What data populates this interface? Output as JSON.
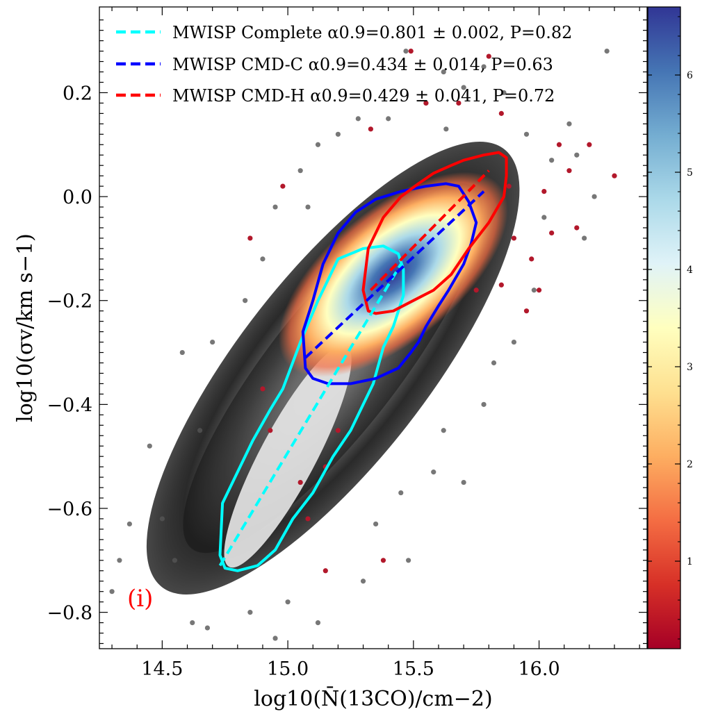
{
  "chart_data": {
    "type": "scatter",
    "title": "",
    "xlabel": "log10(N̄(13CO)/cm−2)",
    "ylabel": "log10(σv/km s−1)",
    "xlim": [
      14.25,
      16.43
    ],
    "ylim": [
      -0.87,
      0.365
    ],
    "x_ticks": [
      {
        "value": 14.5,
        "label": "14.5"
      },
      {
        "value": 15.0,
        "label": "15.0"
      },
      {
        "value": 15.5,
        "label": "15.5"
      },
      {
        "value": 16.0,
        "label": "16.0"
      }
    ],
    "y_ticks": [
      {
        "value": 0.2,
        "label": "0.2"
      },
      {
        "value": 0.0,
        "label": "0.0"
      },
      {
        "value": -0.2,
        "label": "−0.2"
      },
      {
        "value": -0.4,
        "label": "−0.4"
      },
      {
        "value": -0.6,
        "label": "−0.6"
      },
      {
        "value": -0.8,
        "label": "−0.8"
      }
    ],
    "panel_label": "(i)",
    "legend_position": "top-left",
    "series": [
      {
        "name": "MWISP Complete",
        "legend_label": "MWISP Complete α0.9=0.801 ± 0.002, P=0.82",
        "color": "#00ffff",
        "fit_line": [
          [
            14.73,
            -0.71
          ],
          [
            15.45,
            -0.13
          ]
        ],
        "contour": [
          [
            14.73,
            -0.69
          ],
          [
            14.74,
            -0.59
          ],
          [
            14.8,
            -0.53
          ],
          [
            14.86,
            -0.47
          ],
          [
            14.93,
            -0.41
          ],
          [
            14.98,
            -0.37
          ],
          [
            15.05,
            -0.28
          ],
          [
            15.12,
            -0.2
          ],
          [
            15.2,
            -0.12
          ],
          [
            15.3,
            -0.1
          ],
          [
            15.38,
            -0.095
          ],
          [
            15.44,
            -0.11
          ],
          [
            15.46,
            -0.14
          ],
          [
            15.46,
            -0.19
          ],
          [
            15.42,
            -0.25
          ],
          [
            15.38,
            -0.29
          ],
          [
            15.34,
            -0.36
          ],
          [
            15.3,
            -0.4
          ],
          [
            15.25,
            -0.45
          ],
          [
            15.18,
            -0.5
          ],
          [
            15.1,
            -0.57
          ],
          [
            15.02,
            -0.62
          ],
          [
            14.95,
            -0.68
          ],
          [
            14.88,
            -0.71
          ],
          [
            14.8,
            -0.72
          ],
          [
            14.75,
            -0.715
          ],
          [
            14.73,
            -0.69
          ]
        ]
      },
      {
        "name": "MWISP CMD-C",
        "legend_label": "MWISP CMD-C α0.9=0.434 ± 0.014, P=0.63",
        "color": "#0000ff",
        "fit_line": [
          [
            15.07,
            -0.31
          ],
          [
            15.78,
            0.01
          ]
        ],
        "contour": [
          [
            15.07,
            -0.33
          ],
          [
            15.06,
            -0.26
          ],
          [
            15.1,
            -0.2
          ],
          [
            15.14,
            -0.13
          ],
          [
            15.2,
            -0.07
          ],
          [
            15.27,
            -0.03
          ],
          [
            15.35,
            -0.005
          ],
          [
            15.45,
            0.01
          ],
          [
            15.55,
            0.02
          ],
          [
            15.63,
            0.025
          ],
          [
            15.68,
            0.02
          ],
          [
            15.72,
            -0.01
          ],
          [
            15.75,
            -0.05
          ],
          [
            15.73,
            -0.09
          ],
          [
            15.7,
            -0.13
          ],
          [
            15.64,
            -0.18
          ],
          [
            15.6,
            -0.21
          ],
          [
            15.55,
            -0.25
          ],
          [
            15.52,
            -0.28
          ],
          [
            15.49,
            -0.3
          ],
          [
            15.44,
            -0.33
          ],
          [
            15.35,
            -0.35
          ],
          [
            15.25,
            -0.36
          ],
          [
            15.16,
            -0.36
          ],
          [
            15.1,
            -0.35
          ],
          [
            15.07,
            -0.33
          ]
        ]
      },
      {
        "name": "MWISP CMD-H",
        "legend_label": "MWISP CMD-H α0.9=0.429 ± 0.041, P=0.72",
        "color": "#ff0000",
        "fit_line": [
          [
            15.33,
            -0.18
          ],
          [
            15.8,
            0.05
          ]
        ],
        "contour": [
          [
            15.32,
            -0.22
          ],
          [
            15.3,
            -0.18
          ],
          [
            15.32,
            -0.1
          ],
          [
            15.38,
            -0.04
          ],
          [
            15.45,
            0.0
          ],
          [
            15.52,
            0.025
          ],
          [
            15.58,
            0.045
          ],
          [
            15.65,
            0.06
          ],
          [
            15.7,
            0.07
          ],
          [
            15.78,
            0.08
          ],
          [
            15.84,
            0.085
          ],
          [
            15.87,
            0.075
          ],
          [
            15.87,
            0.04
          ],
          [
            15.86,
            0.0
          ],
          [
            15.8,
            -0.05
          ],
          [
            15.72,
            -0.1
          ],
          [
            15.65,
            -0.15
          ],
          [
            15.58,
            -0.18
          ],
          [
            15.5,
            -0.2
          ],
          [
            15.42,
            -0.22
          ],
          [
            15.35,
            -0.225
          ],
          [
            15.32,
            -0.22
          ]
        ]
      }
    ],
    "colorbar": {
      "range": [
        0.1,
        6.7
      ],
      "ticks": [
        {
          "value": 1,
          "label": "1"
        },
        {
          "value": 2,
          "label": "2"
        },
        {
          "value": 3,
          "label": "3"
        },
        {
          "value": 4,
          "label": "4"
        },
        {
          "value": 5,
          "label": "5"
        },
        {
          "value": 6,
          "label": "6"
        }
      ],
      "colormap": "RdYlBu"
    },
    "outlier_points_gray": [
      [
        14.3,
        -0.76
      ],
      [
        14.33,
        -0.7
      ],
      [
        14.37,
        -0.63
      ],
      [
        14.62,
        -0.82
      ],
      [
        14.68,
        -0.83
      ],
      [
        14.45,
        -0.48
      ],
      [
        14.58,
        -0.3
      ],
      [
        14.83,
        -0.2
      ],
      [
        14.9,
        -0.12
      ],
      [
        15.05,
        0.05
      ],
      [
        15.12,
        0.1
      ],
      [
        15.2,
        0.12
      ],
      [
        15.28,
        0.15
      ],
      [
        15.4,
        0.15
      ],
      [
        15.47,
        0.28
      ],
      [
        15.55,
        0.18
      ],
      [
        15.62,
        0.24
      ],
      [
        15.7,
        0.21
      ],
      [
        15.78,
        0.25
      ],
      [
        15.86,
        0.2
      ],
      [
        15.95,
        0.12
      ],
      [
        16.05,
        0.07
      ],
      [
        16.12,
        0.14
      ],
      [
        16.27,
        0.28
      ],
      [
        16.15,
        0.08
      ],
      [
        16.22,
        0.0
      ],
      [
        16.02,
        -0.04
      ],
      [
        15.98,
        -0.18
      ],
      [
        16.18,
        -0.08
      ],
      [
        15.9,
        -0.28
      ],
      [
        15.82,
        -0.32
      ],
      [
        15.78,
        -0.4
      ],
      [
        15.62,
        -0.45
      ],
      [
        15.58,
        -0.53
      ],
      [
        15.45,
        -0.57
      ],
      [
        15.35,
        -0.63
      ],
      [
        15.7,
        -0.55
      ],
      [
        15.48,
        -0.7
      ],
      [
        15.3,
        -0.74
      ],
      [
        15.12,
        -0.82
      ],
      [
        14.95,
        -0.85
      ],
      [
        15.0,
        -0.78
      ],
      [
        14.85,
        -0.8
      ],
      [
        14.55,
        -0.7
      ],
      [
        14.5,
        -0.62
      ],
      [
        14.65,
        -0.45
      ],
      [
        14.7,
        -0.28
      ],
      [
        14.95,
        -0.02
      ],
      [
        15.08,
        -0.02
      ],
      [
        15.63,
        0.13
      ]
    ],
    "outlier_points_red": [
      [
        15.49,
        0.28
      ],
      [
        15.8,
        0.27
      ],
      [
        15.68,
        0.18
      ],
      [
        15.85,
        0.16
      ],
      [
        16.08,
        0.1
      ],
      [
        16.2,
        0.1
      ],
      [
        16.3,
        0.04
      ],
      [
        16.12,
        0.05
      ],
      [
        16.02,
        0.01
      ],
      [
        16.15,
        -0.06
      ],
      [
        16.05,
        -0.07
      ],
      [
        15.97,
        -0.12
      ],
      [
        16.0,
        -0.18
      ],
      [
        15.95,
        -0.22
      ],
      [
        15.85,
        -0.17
      ],
      [
        15.75,
        -0.18
      ],
      [
        15.55,
        0.18
      ],
      [
        15.33,
        0.13
      ],
      [
        14.85,
        -0.08
      ],
      [
        14.98,
        0.02
      ],
      [
        14.9,
        -0.37
      ],
      [
        14.93,
        -0.45
      ],
      [
        15.05,
        -0.55
      ],
      [
        15.08,
        -0.62
      ],
      [
        15.15,
        -0.52
      ],
      [
        15.38,
        -0.7
      ],
      [
        15.2,
        -0.45
      ],
      [
        15.15,
        -0.72
      ],
      [
        15.88,
        0.02
      ],
      [
        15.9,
        -0.08
      ]
    ]
  }
}
